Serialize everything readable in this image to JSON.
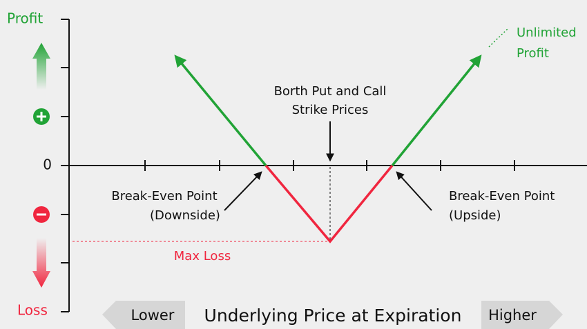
{
  "axis": {
    "top_label": "Profit",
    "bottom_label": "Loss",
    "zero_label": "0",
    "x_title": "Underlying Price at Expiration",
    "lower": "Lower",
    "higher": "Higher"
  },
  "annotations": {
    "strike": [
      "Borth Put and Call",
      "Strike Prices"
    ],
    "break_even_down": [
      "Break-Even Point",
      "(Downside)"
    ],
    "break_even_up": [
      "Break-Even Point",
      "(Upside)"
    ],
    "max_loss": "Max Loss",
    "unlimited": [
      "Unlimited",
      "Profit"
    ]
  }
}
